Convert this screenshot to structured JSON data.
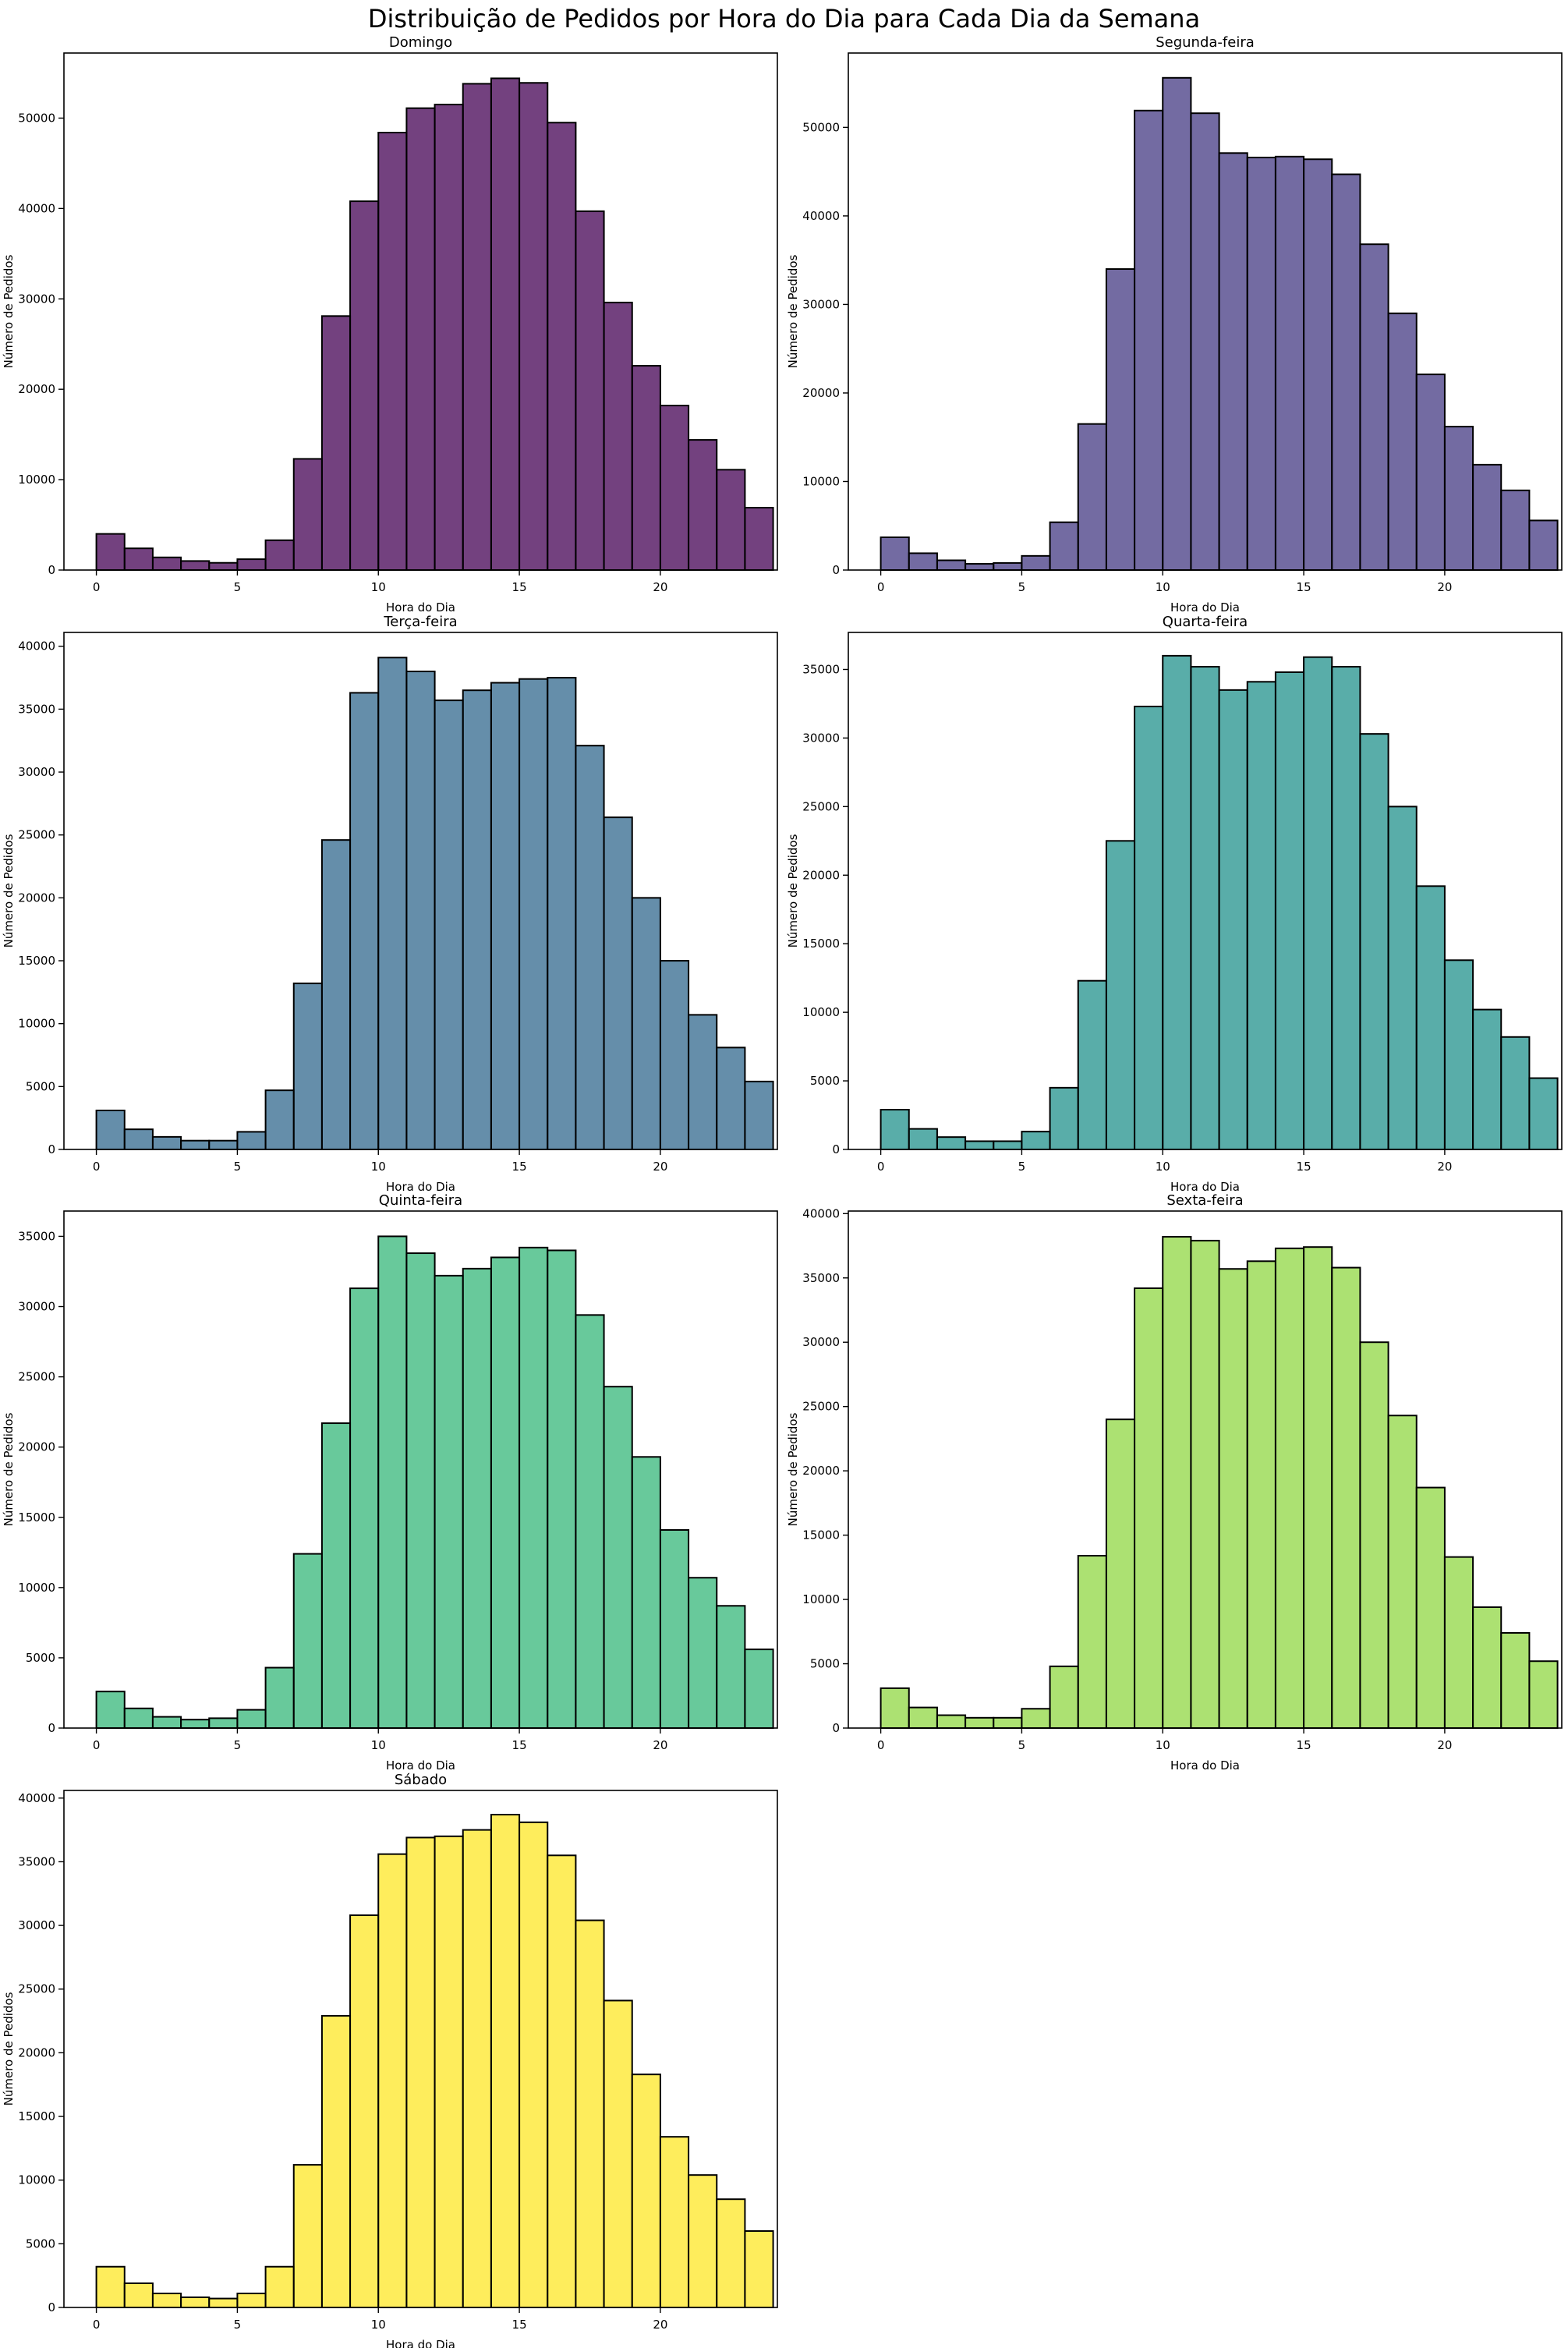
{
  "figure": {
    "title": "Distribuição de Pedidos por Hora do Dia para Cada Dia da Semana"
  },
  "chart_data": [
    {
      "type": "bar",
      "title": "Domingo",
      "xlabel": "Hora do Dia",
      "ylabel": "Número de Pedidos",
      "color": "#440154",
      "x": [
        0,
        1,
        2,
        3,
        4,
        5,
        6,
        7,
        8,
        9,
        10,
        11,
        12,
        13,
        14,
        15,
        16,
        17,
        18,
        19,
        20,
        21,
        22,
        23
      ],
      "values": [
        4000,
        2400,
        1400,
        1000,
        800,
        1200,
        3300,
        12300,
        28100,
        40800,
        48400,
        51100,
        51500,
        53800,
        54400,
        53900,
        49500,
        39700,
        29600,
        22600,
        18200,
        14400,
        11100,
        6900
      ],
      "xticks": [
        0,
        5,
        10,
        15,
        20
      ],
      "yticks": [
        0,
        10000,
        20000,
        30000,
        40000,
        50000
      ],
      "xlim": [
        -1.15,
        24.15
      ],
      "ylim": [
        0,
        57200
      ]
    },
    {
      "type": "bar",
      "title": "Segunda-feira",
      "xlabel": "Hora do Dia",
      "ylabel": "Número de Pedidos",
      "color": "#443983",
      "x": [
        0,
        1,
        2,
        3,
        4,
        5,
        6,
        7,
        8,
        9,
        10,
        11,
        12,
        13,
        14,
        15,
        16,
        17,
        18,
        19,
        20,
        21,
        22,
        23
      ],
      "values": [
        3700,
        1900,
        1100,
        700,
        800,
        1600,
        5400,
        16500,
        34000,
        51900,
        55600,
        51600,
        47100,
        46600,
        46700,
        46400,
        44700,
        36800,
        29000,
        22100,
        16200,
        11900,
        9000,
        5600
      ],
      "xticks": [
        0,
        5,
        10,
        15,
        20
      ],
      "yticks": [
        0,
        10000,
        20000,
        30000,
        40000,
        50000
      ],
      "xlim": [
        -1.15,
        24.15
      ],
      "ylim": [
        0,
        58400
      ]
    },
    {
      "type": "bar",
      "title": "Terça-feira",
      "xlabel": "Hora do Dia",
      "ylabel": "Número de Pedidos",
      "color": "#31688e",
      "x": [
        0,
        1,
        2,
        3,
        4,
        5,
        6,
        7,
        8,
        9,
        10,
        11,
        12,
        13,
        14,
        15,
        16,
        17,
        18,
        19,
        20,
        21,
        22,
        23
      ],
      "values": [
        3100,
        1600,
        1000,
        700,
        700,
        1400,
        4700,
        13200,
        24600,
        36300,
        39100,
        38000,
        35700,
        36500,
        37100,
        37400,
        37500,
        32100,
        26400,
        20000,
        15000,
        10700,
        8100,
        5400
      ],
      "xticks": [
        0,
        5,
        10,
        15,
        20
      ],
      "yticks": [
        0,
        5000,
        10000,
        15000,
        20000,
        25000,
        30000,
        35000,
        40000
      ],
      "xlim": [
        -1.15,
        24.15
      ],
      "ylim": [
        0,
        41100
      ]
    },
    {
      "type": "bar",
      "title": "Quarta-feira",
      "xlabel": "Hora do Dia",
      "ylabel": "Número de Pedidos",
      "color": "#21918c",
      "x": [
        0,
        1,
        2,
        3,
        4,
        5,
        6,
        7,
        8,
        9,
        10,
        11,
        12,
        13,
        14,
        15,
        16,
        17,
        18,
        19,
        20,
        21,
        22,
        23
      ],
      "values": [
        2900,
        1500,
        900,
        600,
        600,
        1300,
        4500,
        12300,
        22500,
        32300,
        36000,
        35200,
        33500,
        34100,
        34800,
        35900,
        35200,
        30300,
        25000,
        19200,
        13800,
        10200,
        8200,
        5200
      ],
      "xticks": [
        0,
        5,
        10,
        15,
        20
      ],
      "yticks": [
        0,
        5000,
        10000,
        15000,
        20000,
        25000,
        30000,
        35000
      ],
      "xlim": [
        -1.15,
        24.15
      ],
      "ylim": [
        0,
        37700
      ]
    },
    {
      "type": "bar",
      "title": "Quinta-feira",
      "xlabel": "Hora do Dia",
      "ylabel": "Número de Pedidos",
      "color": "#35b779",
      "x": [
        0,
        1,
        2,
        3,
        4,
        5,
        6,
        7,
        8,
        9,
        10,
        11,
        12,
        13,
        14,
        15,
        16,
        17,
        18,
        19,
        20,
        21,
        22,
        23
      ],
      "values": [
        2600,
        1400,
        800,
        600,
        700,
        1300,
        4300,
        12400,
        21700,
        31300,
        35000,
        33800,
        32200,
        32700,
        33500,
        34200,
        34000,
        29400,
        24300,
        19300,
        14100,
        10700,
        8700,
        5600
      ],
      "xticks": [
        0,
        5,
        10,
        15,
        20
      ],
      "yticks": [
        0,
        5000,
        10000,
        15000,
        20000,
        25000,
        30000,
        35000
      ],
      "xlim": [
        -1.15,
        24.15
      ],
      "ylim": [
        0,
        36800
      ]
    },
    {
      "type": "bar",
      "title": "Sexta-feira",
      "xlabel": "Hora do Dia",
      "ylabel": "Número de Pedidos",
      "color": "#90d743",
      "x": [
        0,
        1,
        2,
        3,
        4,
        5,
        6,
        7,
        8,
        9,
        10,
        11,
        12,
        13,
        14,
        15,
        16,
        17,
        18,
        19,
        20,
        21,
        22,
        23
      ],
      "values": [
        3100,
        1600,
        1000,
        800,
        800,
        1500,
        4800,
        13400,
        24000,
        34200,
        38200,
        37900,
        35700,
        36300,
        37300,
        37400,
        35800,
        30000,
        24300,
        18700,
        13300,
        9400,
        7400,
        5200
      ],
      "xticks": [
        0,
        5,
        10,
        15,
        20
      ],
      "yticks": [
        0,
        5000,
        10000,
        15000,
        20000,
        25000,
        30000,
        35000,
        40000
      ],
      "xlim": [
        -1.15,
        24.15
      ],
      "ylim": [
        0,
        40200
      ]
    },
    {
      "type": "bar",
      "title": "Sábado",
      "xlabel": "Hora do Dia",
      "ylabel": "Número de Pedidos",
      "color": "#fde725",
      "x": [
        0,
        1,
        2,
        3,
        4,
        5,
        6,
        7,
        8,
        9,
        10,
        11,
        12,
        13,
        14,
        15,
        16,
        17,
        18,
        19,
        20,
        21,
        22,
        23
      ],
      "values": [
        3200,
        1900,
        1100,
        800,
        700,
        1100,
        3200,
        11200,
        22900,
        30800,
        35600,
        36900,
        37000,
        37500,
        38700,
        38100,
        35500,
        30400,
        24100,
        18300,
        13400,
        10400,
        8500,
        6000
      ],
      "xticks": [
        0,
        5,
        10,
        15,
        20
      ],
      "yticks": [
        0,
        5000,
        10000,
        15000,
        20000,
        25000,
        30000,
        35000,
        40000
      ],
      "xlim": [
        -1.15,
        24.15
      ],
      "ylim": [
        0,
        40600
      ]
    }
  ]
}
